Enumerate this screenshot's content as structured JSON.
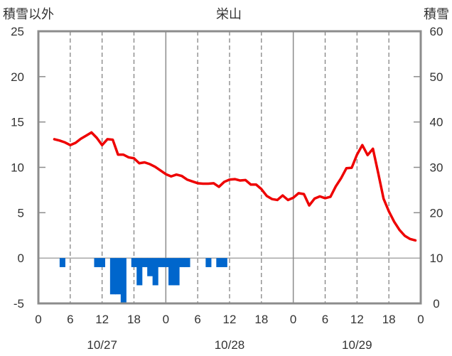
{
  "chart_data": {
    "type": "line+bar",
    "title": "栄山",
    "ylabel_left": "積雪以外",
    "ylabel_right": "積雪",
    "ylim_left": [
      -5,
      25
    ],
    "ylim_right": [
      0,
      60
    ],
    "yticks_left": [
      "25",
      "20",
      "15",
      "10",
      "5",
      "0",
      "-5"
    ],
    "yticks_right": [
      "60",
      "50",
      "40",
      "30",
      "20",
      "10",
      "0"
    ],
    "xlim_hours": [
      0,
      72
    ],
    "xtick_labels": [
      "0",
      "6",
      "12",
      "18",
      "0",
      "6",
      "12",
      "18",
      "0",
      "6",
      "12",
      "18",
      "0"
    ],
    "date_labels": [
      "10/27",
      "10/28",
      "10/29"
    ],
    "grid": "dashed-vertical-every-6h",
    "series": [
      {
        "axis": "right",
        "render": "line",
        "color": "#ee0000",
        "x": [
          3,
          4,
          5,
          6,
          7,
          8,
          9,
          10,
          11,
          12,
          13,
          14,
          15,
          16,
          17,
          18,
          19,
          20,
          21,
          22,
          23,
          24,
          25,
          26,
          27,
          28,
          29,
          30,
          31,
          32,
          33,
          34,
          35,
          36,
          37,
          38,
          39,
          40,
          41,
          42,
          43,
          44,
          45,
          46,
          47,
          48,
          49,
          50,
          51,
          52,
          53,
          54,
          55,
          56,
          57,
          58,
          59,
          60,
          61,
          62,
          63,
          64,
          65,
          66,
          67,
          68,
          69,
          70,
          71
        ],
        "values": [
          36.2,
          35.9,
          35.5,
          34.9,
          35.4,
          36.3,
          37.0,
          37.7,
          36.5,
          34.9,
          36.2,
          36.1,
          32.8,
          32.8,
          32.2,
          32.0,
          30.9,
          31.1,
          30.7,
          30.1,
          29.3,
          28.5,
          28.0,
          28.4,
          28.1,
          27.3,
          26.9,
          26.5,
          26.4,
          26.4,
          26.5,
          25.7,
          26.8,
          27.3,
          27.4,
          27.1,
          27.2,
          26.2,
          26.2,
          25.2,
          23.7,
          23.0,
          22.8,
          23.8,
          22.8,
          23.3,
          24.3,
          24.1,
          21.6,
          23.1,
          23.6,
          23.2,
          23.5,
          25.8,
          27.6,
          29.8,
          29.9,
          32.8,
          34.9,
          32.7,
          34.1,
          28.7,
          23.1,
          20.3,
          18.0,
          16.2,
          14.9,
          14.2,
          13.9
        ]
      },
      {
        "axis": "left",
        "render": "bar",
        "color": "#0066cc",
        "x": [
          4.5,
          11,
          12,
          14,
          15,
          16,
          18,
          19,
          20,
          21,
          22,
          23,
          24,
          25,
          26,
          27,
          28,
          32,
          34,
          35
        ],
        "values": [
          -1,
          -1,
          -1,
          -4,
          -4,
          -5,
          -1,
          -3,
          -1,
          -2,
          -3,
          -1,
          -1,
          -3,
          -3,
          -1,
          -1,
          -1,
          -1,
          -1
        ]
      }
    ]
  }
}
